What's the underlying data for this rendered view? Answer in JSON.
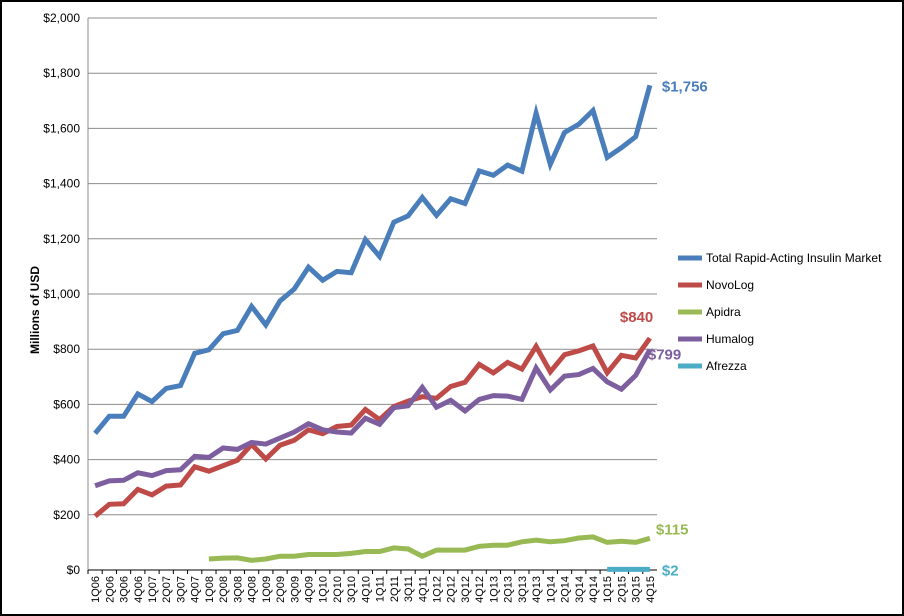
{
  "chart_data": {
    "type": "line",
    "title": "",
    "xlabel": "",
    "ylabel": "Millions of USD",
    "ylim": [
      0,
      2000
    ],
    "y_ticks": [
      "$0",
      "$200",
      "$400",
      "$600",
      "$800",
      "$1,000",
      "$1,200",
      "$1,400",
      "$1,600",
      "$1,800",
      "$2,000"
    ],
    "grid": "horizontal",
    "legend_position": "right",
    "categories": [
      "1Q06",
      "2Q06",
      "3Q06",
      "4Q06",
      "1Q07",
      "2Q07",
      "3Q07",
      "4Q07",
      "1Q08",
      "2Q08",
      "3Q08",
      "4Q08",
      "1Q09",
      "2Q09",
      "3Q09",
      "4Q09",
      "1Q10",
      "2Q10",
      "3Q10",
      "4Q10",
      "1Q11",
      "2Q11",
      "3Q11",
      "4Q11",
      "1Q12",
      "2Q12",
      "3Q12",
      "4Q12",
      "1Q13",
      "2Q13",
      "3Q13",
      "4Q13",
      "1Q14",
      "2Q14",
      "3Q14",
      "4Q14",
      "1Q15",
      "2Q15",
      "3Q15",
      "4Q15"
    ],
    "series": [
      {
        "name": "Total Rapid-Acting Insulin Market",
        "color": "#4A7EBB",
        "end_label": "$1,756",
        "values": [
          495,
          557,
          557,
          638,
          610,
          658,
          668,
          785,
          798,
          856,
          868,
          955,
          888,
          975,
          1018,
          1097,
          1050,
          1082,
          1077,
          1197,
          1136,
          1260,
          1283,
          1350,
          1285,
          1345,
          1328,
          1446,
          1430,
          1467,
          1445,
          1655,
          1470,
          1585,
          1615,
          1665,
          1495,
          1530,
          1570,
          1756
        ]
      },
      {
        "name": "NovoLog",
        "color": "#BE4B48",
        "end_label": "$840",
        "values": [
          195,
          238,
          240,
          292,
          272,
          304,
          308,
          374,
          358,
          378,
          398,
          455,
          402,
          452,
          470,
          508,
          494,
          520,
          525,
          582,
          545,
          592,
          612,
          628,
          622,
          665,
          680,
          745,
          714,
          752,
          728,
          810,
          718,
          780,
          794,
          812,
          715,
          778,
          768,
          840
        ]
      },
      {
        "name": "Apidra",
        "color": "#98B954",
        "end_label": "$115",
        "values": [
          null,
          null,
          null,
          null,
          null,
          null,
          null,
          null,
          40,
          43,
          44,
          35,
          40,
          50,
          50,
          56,
          56,
          56,
          60,
          67,
          67,
          80,
          76,
          50,
          72,
          72,
          72,
          86,
          90,
          90,
          102,
          108,
          102,
          106,
          116,
          120,
          100,
          104,
          100,
          115
        ]
      },
      {
        "name": "Humalog",
        "color": "#7D5FA0",
        "end_label": "$799",
        "values": [
          305,
          323,
          325,
          352,
          342,
          360,
          363,
          412,
          408,
          442,
          437,
          462,
          456,
          478,
          500,
          530,
          508,
          500,
          496,
          550,
          528,
          588,
          595,
          662,
          590,
          615,
          576,
          618,
          632,
          630,
          618,
          732,
          652,
          702,
          708,
          730,
          682,
          655,
          705,
          799
        ]
      },
      {
        "name": "Afrezza",
        "color": "#4BACC6",
        "end_label": "$2",
        "values": [
          null,
          null,
          null,
          null,
          null,
          null,
          null,
          null,
          null,
          null,
          null,
          null,
          null,
          null,
          null,
          null,
          null,
          null,
          null,
          null,
          null,
          null,
          null,
          null,
          null,
          null,
          null,
          null,
          null,
          null,
          null,
          null,
          null,
          null,
          null,
          null,
          2,
          2,
          2,
          2
        ]
      }
    ]
  }
}
